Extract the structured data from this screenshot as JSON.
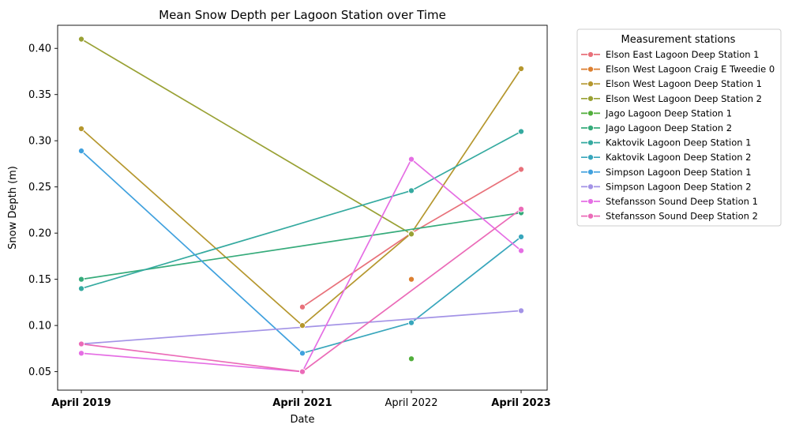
{
  "chart_data": {
    "type": "line",
    "title": "Mean Snow Depth per Lagoon Station over Time",
    "xlabel": "Date",
    "ylabel": "Snow Depth (m)",
    "x_ticks": [
      {
        "label": "April 2019",
        "bold": true
      },
      {
        "label": "April 2021",
        "bold": true
      },
      {
        "label": "April 2022",
        "bold": false
      },
      {
        "label": "April 2023",
        "bold": true
      }
    ],
    "y_ticks": [
      "0.05",
      "0.10",
      "0.15",
      "0.20",
      "0.25",
      "0.30",
      "0.35",
      "0.40"
    ],
    "ylim": [
      0.03,
      0.425
    ],
    "grid": false,
    "legend": {
      "title": "Measurement stations",
      "placement": "outside-right"
    },
    "series": [
      {
        "name": "Elson East Lagoon Deep Station 1",
        "color": "#e8717a",
        "points": [
          [
            1,
            0.12
          ],
          [
            2,
            0.2
          ],
          [
            3,
            0.269
          ]
        ]
      },
      {
        "name": "Elson West Lagoon Craig E Tweedie 0",
        "color": "#dc7f30",
        "points": [
          [
            2,
            0.15
          ]
        ]
      },
      {
        "name": "Elson West Lagoon Deep Station 1",
        "color": "#b5972e",
        "points": [
          [
            0,
            0.313
          ],
          [
            1,
            0.1
          ],
          [
            2,
            0.2
          ],
          [
            3,
            0.378
          ]
        ]
      },
      {
        "name": "Elson West Lagoon Deep Station 2",
        "color": "#99a134",
        "points": [
          [
            0,
            0.41
          ],
          [
            2,
            0.199
          ]
        ]
      },
      {
        "name": "Jago Lagoon Deep Station 1",
        "color": "#51ae3b",
        "points": [
          [
            2,
            0.064
          ]
        ]
      },
      {
        "name": "Jago Lagoon Deep Station 2",
        "color": "#36ab7b",
        "points": [
          [
            0,
            0.15
          ],
          [
            3,
            0.222
          ]
        ]
      },
      {
        "name": "Kaktovik Lagoon Deep Station 1",
        "color": "#35aaa0",
        "points": [
          [
            0,
            0.14
          ],
          [
            2,
            0.246
          ],
          [
            3,
            0.31
          ]
        ]
      },
      {
        "name": "Kaktovik Lagoon Deep Station 2",
        "color": "#38a6bc",
        "points": [
          [
            1,
            0.07
          ],
          [
            2,
            0.103
          ],
          [
            3,
            0.196
          ]
        ]
      },
      {
        "name": "Simpson Lagoon Deep Station 1",
        "color": "#40a1de",
        "points": [
          [
            0,
            0.289
          ],
          [
            1,
            0.07
          ]
        ]
      },
      {
        "name": "Simpson Lagoon Deep Station 2",
        "color": "#a393e6",
        "points": [
          [
            0,
            0.08
          ],
          [
            3,
            0.116
          ]
        ]
      },
      {
        "name": "Stefansson Sound Deep Station 1",
        "color": "#e56ee4",
        "points": [
          [
            0,
            0.07
          ],
          [
            1,
            0.05
          ],
          [
            2,
            0.28
          ],
          [
            3,
            0.181
          ]
        ]
      },
      {
        "name": "Stefansson Sound Deep Station 2",
        "color": "#eb6bb8",
        "points": [
          [
            0,
            0.08
          ],
          [
            1,
            0.05
          ],
          [
            3,
            0.226
          ]
        ]
      }
    ]
  }
}
